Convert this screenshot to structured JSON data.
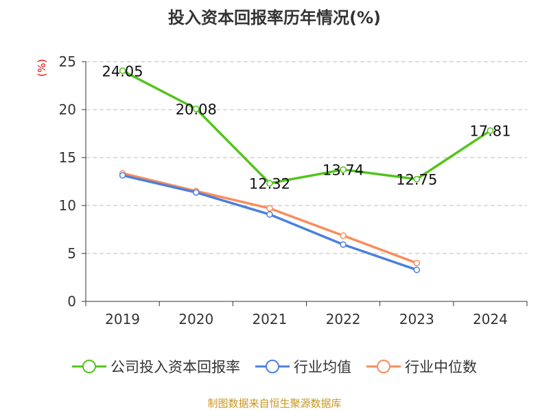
{
  "chart_data": {
    "type": "line",
    "title": "投入资本回报率历年情况(%)",
    "ylabel": "(%)",
    "categories": [
      "2019",
      "2020",
      "2021",
      "2022",
      "2023",
      "2024"
    ],
    "ylim": [
      0,
      25
    ],
    "yticks": [
      0,
      5,
      10,
      15,
      20,
      25
    ],
    "grid": true,
    "legend_position": "bottom",
    "series": [
      {
        "name": "公司投入资本回报率",
        "color": "#52c41a",
        "values": [
          24.05,
          20.08,
          12.32,
          13.74,
          12.75,
          17.81
        ],
        "labels": [
          "24.05",
          "20.08",
          "12.32",
          "13.74",
          "12.75",
          "17.81"
        ]
      },
      {
        "name": "行业均值",
        "color": "#4a7fe0",
        "values": [
          13.14,
          11.36,
          9.07,
          5.93,
          3.29,
          null
        ]
      },
      {
        "name": "行业中位数",
        "color": "#fa8c5a",
        "values": [
          13.36,
          11.5,
          9.71,
          6.86,
          4.0,
          null
        ]
      }
    ]
  },
  "source": "制图数据来自恒生聚源数据库"
}
